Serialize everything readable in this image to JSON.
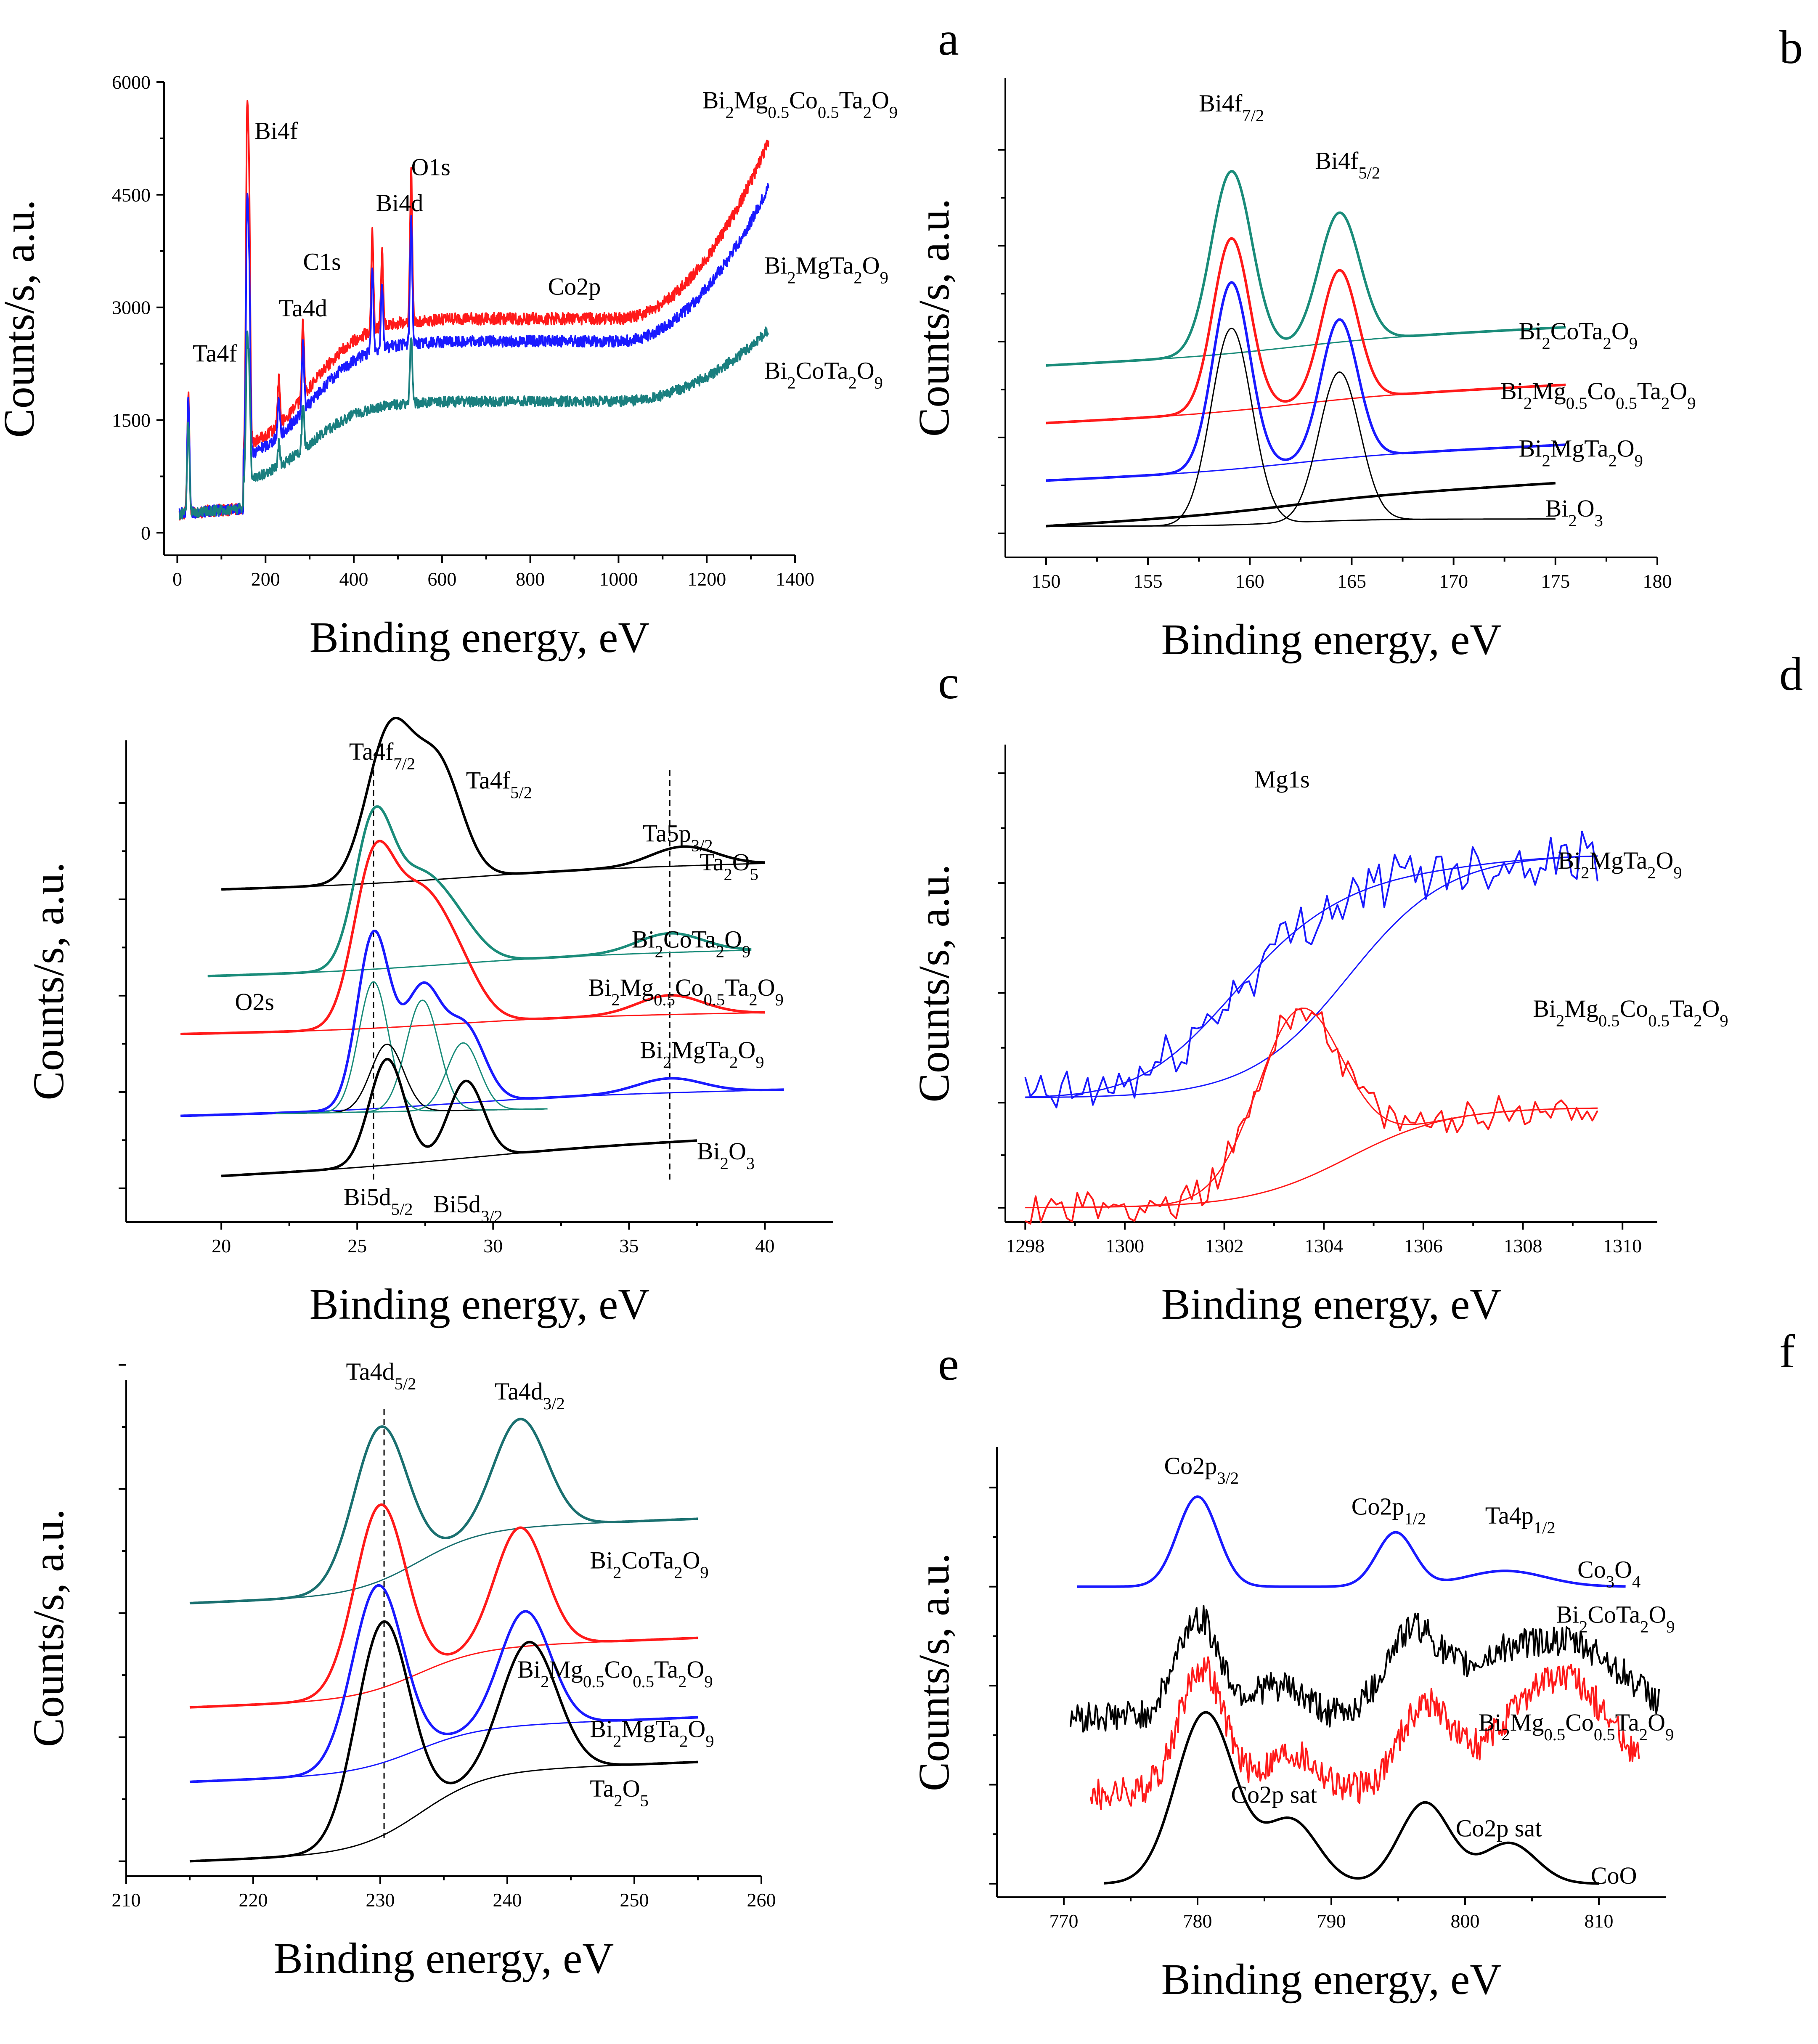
{
  "chart_data": [
    {
      "id": "a",
      "type": "line",
      "panel_letter": "a",
      "xlabel": "Binding energy, eV",
      "ylabel": "Counts/s, a.u.",
      "xlim": [
        -30,
        1400
      ],
      "ylim": [
        -300,
        6000
      ],
      "xticks": [
        0,
        200,
        400,
        600,
        800,
        1000,
        1200,
        1400
      ],
      "yticks": [
        0,
        1500,
        3000,
        4500,
        6000
      ],
      "ytick_labels": [
        "0",
        "1500",
        "3000",
        "4500",
        "6000"
      ],
      "annotations": [
        {
          "text": "Ta4f",
          "x": 35,
          "y": 2280
        },
        {
          "text": "Bi4f",
          "x": 175,
          "y": 5240
        },
        {
          "text": "C1s",
          "x": 285,
          "y": 3500
        },
        {
          "text": "Ta4d",
          "x": 230,
          "y": 2880
        },
        {
          "text": "Bi4d",
          "x": 450,
          "y": 4280
        },
        {
          "text": "O1s",
          "x": 530,
          "y": 4760
        },
        {
          "text": "Co2p",
          "x": 840,
          "y": 3170
        }
      ],
      "series": [
        {
          "name": "Bi₂Mg₀.₅Co₀.₅Ta₂O₉",
          "color": "#ff1a1a",
          "base": 2850,
          "end": 5200,
          "peaks": [
            [
              25,
              1600
            ],
            [
              158,
              4100
            ],
            [
              163,
              3100
            ],
            [
              230,
              600
            ],
            [
              285,
              1000
            ],
            [
              442,
              1300
            ],
            [
              464,
              1000
            ],
            [
              530,
              2000
            ]
          ],
          "noise": 160
        },
        {
          "name": "Bi₂MgTa₂O₉",
          "color": "#1a1aff",
          "base": 2550,
          "end": 4600,
          "peaks": [
            [
              25,
              1500
            ],
            [
              158,
              3000
            ],
            [
              163,
              2300
            ],
            [
              230,
              500
            ],
            [
              285,
              900
            ],
            [
              442,
              1100
            ],
            [
              464,
              900
            ],
            [
              530,
              1700
            ]
          ],
          "noise": 150
        },
        {
          "name": "Bi₂CoTa₂O₉",
          "color": "#1a7f7f",
          "base": 1750,
          "end": 2700,
          "peaks": [
            [
              25,
              1200
            ],
            [
              158,
              1700
            ],
            [
              163,
              1300
            ],
            [
              230,
              300
            ],
            [
              285,
              600
            ],
            [
              530,
              900
            ]
          ],
          "noise": 140
        }
      ],
      "series_labels": [
        {
          "text": "Bi₂Mg₀.₅Co₀.₅Ta₂O₉",
          "x": 1190,
          "y": 5650
        },
        {
          "text": "Bi₂MgTa₂O₉",
          "x": 1330,
          "y": 3450
        },
        {
          "text": "Bi₂CoTa₂O₉",
          "x": 1330,
          "y": 2050
        }
      ]
    },
    {
      "id": "b",
      "type": "line",
      "panel_letter": "b",
      "xlabel": "Binding energy, eV",
      "ylabel": "Counts/s, a.u.",
      "xlim": [
        148,
        180
      ],
      "ylim": [
        0,
        10
      ],
      "xticks": [
        150,
        155,
        160,
        165,
        170,
        175,
        180
      ],
      "yticks": [
        0.5,
        2.5,
        4.5,
        6.5,
        8.5
      ],
      "ytick_labels": [
        "",
        "",
        "",
        "",
        ""
      ],
      "annotations": [
        {
          "text": "Bi4f7/2",
          "x": 157.5,
          "y": 9.3
        },
        {
          "text": "Bi4f5/2",
          "x": 163.2,
          "y": 8.1
        }
      ],
      "series": [
        {
          "name": "Bi₂CoTa₂O₉",
          "color": "#1a8c7a",
          "offset": 4.0,
          "x0": 150,
          "x1": 175.5,
          "tail": 0.55,
          "peaks": [
            [
              159.1,
              3.8,
              1.0
            ],
            [
              164.4,
              2.7,
              1.0
            ]
          ]
        },
        {
          "name": "Bi₂Mg₀.₅Co₀.₅Ta₂O₉",
          "color": "#ff1a1a",
          "offset": 2.8,
          "x0": 150,
          "x1": 175.5,
          "tail": 0.55,
          "peaks": [
            [
              159.1,
              3.6,
              0.9
            ],
            [
              164.4,
              2.7,
              0.9
            ]
          ]
        },
        {
          "name": "Bi₂MgTa₂O₉",
          "color": "#1a1aff",
          "offset": 1.6,
          "x0": 150,
          "x1": 175.5,
          "tail": 0.5,
          "peaks": [
            [
              159.1,
              3.9,
              0.9
            ],
            [
              164.4,
              2.9,
              0.9
            ]
          ]
        },
        {
          "name": "Bi₂O₃",
          "color": "#000000",
          "offset": 0.65,
          "x0": 150,
          "x1": 175,
          "tail": 0.65,
          "peaks": [],
          "components": [
            [
              159.1,
              4.1,
              1.0
            ],
            [
              164.4,
              3.1,
              1.0
            ]
          ]
        }
      ],
      "series_labels": [
        {
          "text": "Bi₂CoTa₂O₉",
          "x": 173.2,
          "y": 4.55
        },
        {
          "text": "Bi₂Mg₀.₅Co₀.₅Ta₂O₉",
          "x": 172.3,
          "y": 3.3
        },
        {
          "text": "Bi₂MgTa₂O₉",
          "x": 173.2,
          "y": 2.1
        },
        {
          "text": "Bi₂O₃",
          "x": 174.5,
          "y": 0.85
        }
      ]
    },
    {
      "id": "c",
      "type": "line",
      "panel_letter": "c",
      "xlabel": "Binding energy, eV",
      "ylabel": "Counts/s, a.u.",
      "xlim": [
        16.5,
        42.5
      ],
      "ylim": [
        0,
        10
      ],
      "xticks": [
        20,
        25,
        30,
        35,
        40
      ],
      "yticks": [
        0.7,
        2.7,
        4.7,
        6.7,
        8.7
      ],
      "ytick_labels": [
        "",
        "",
        "",
        "",
        ""
      ],
      "annotations": [
        {
          "text": "Ta4f7/2",
          "x": 24.7,
          "y": 9.6
        },
        {
          "text": "Ta4f5/2",
          "x": 29.0,
          "y": 9.0
        },
        {
          "text": "Ta5p3/2",
          "x": 35.5,
          "y": 7.9
        },
        {
          "text": "O2s",
          "x": 20.5,
          "y": 4.4
        },
        {
          "text": "Bi5d5/2",
          "x": 24.5,
          "y": 0.35
        },
        {
          "text": "Bi5d3/2",
          "x": 27.8,
          "y": 0.2
        }
      ],
      "series": [
        {
          "name": "Ta₂O₅",
          "color": "#000000",
          "offset": 6.9,
          "x0": 20,
          "x1": 40,
          "tail": 0.3,
          "peaks": [
            [
              26.2,
              3.1,
              0.85
            ],
            [
              28.0,
              2.3,
              0.85
            ],
            [
              37.0,
              0.4,
              1.2
            ]
          ]
        },
        {
          "name": "Bi₂CoTa₂O₉",
          "color": "#1a8c7a",
          "offset": 5.1,
          "x0": 19.5,
          "x1": 39.5,
          "tail": 0.3,
          "peaks": [
            [
              25.6,
              3.0,
              0.7
            ],
            [
              27.2,
              1.6,
              0.9
            ],
            [
              28.6,
              0.8,
              0.9
            ],
            [
              36.5,
              0.4,
              1.2
            ]
          ]
        },
        {
          "name": "Bi₂Mg₀.₅Co₀.₅Ta₂O₉",
          "color": "#ff1a1a",
          "offset": 3.9,
          "x0": 18.5,
          "x1": 40,
          "tail": 0.2,
          "peaks": [
            [
              25.6,
              3.3,
              0.75
            ],
            [
              27.2,
              2.3,
              0.9
            ],
            [
              28.6,
              1.2,
              0.9
            ],
            [
              36.5,
              0.4,
              1.2
            ]
          ]
        },
        {
          "name": "Bi₂MgTa₂O₉",
          "color": "#1a1aff",
          "offset": 2.2,
          "x0": 18.5,
          "x1": 40.7,
          "tail": 0.3,
          "peaks": [
            [
              25.6,
              3.6,
              0.6
            ],
            [
              27.4,
              2.4,
              0.7
            ],
            [
              29.0,
              1.5,
              0.7
            ],
            [
              36.5,
              0.3,
              1.2
            ]
          ]
        },
        {
          "name": "Bi₂O₃",
          "color": "#000000",
          "offset": 0.95,
          "x0": 20,
          "x1": 37.5,
          "tail": 0.5,
          "peaks": [
            [
              26.1,
              2.2,
              0.65
            ],
            [
              29.0,
              1.6,
              0.65
            ]
          ]
        }
      ],
      "series_labels": [
        {
          "text": "Ta₂O₅",
          "x": 37.6,
          "y": 7.3
        },
        {
          "text": "Bi₂CoTa₂O₉",
          "x": 35.1,
          "y": 5.7
        },
        {
          "text": "Bi₂Mg₀.₅Co₀.₅Ta₂O₉",
          "x": 33.5,
          "y": 4.7
        },
        {
          "text": "Bi₂MgTa₂O₉",
          "x": 35.4,
          "y": 3.4
        },
        {
          "text": "Bi₂O₃",
          "x": 37.5,
          "y": 1.3
        }
      ],
      "dashed_lines_x": [
        25.6,
        36.5
      ]
    },
    {
      "id": "d",
      "type": "line",
      "panel_letter": "d",
      "xlabel": "Binding energy, eV",
      "ylabel": "Counts/s, a.u.",
      "xlim": [
        1297.6,
        1310.7
      ],
      "ylim": [
        0,
        10
      ],
      "xticks": [
        1298,
        1300,
        1302,
        1304,
        1306,
        1308,
        1310
      ],
      "yticks": [
        0.3,
        2.5,
        4.8,
        7.1,
        9.4
      ],
      "ytick_labels": [
        "",
        "",
        "",
        "",
        ""
      ],
      "annotations": [
        {
          "text": "Mg1s",
          "x": 1302.6,
          "y": 9.1
        }
      ],
      "series": [
        {
          "name": "Bi₂MgTa₂O₉",
          "color": "#1a1aff",
          "x0": 1298,
          "x1": 1309.5,
          "base_start": 2.6,
          "base_end": 7.7,
          "fit_peak": [
            1303.3,
            2.2,
            1.6
          ],
          "noise": 0.55
        },
        {
          "name": "Bi₂Mg₀.₅Co₀.₅Ta₂O₉",
          "color": "#ff1a1a",
          "x0": 1298,
          "x1": 1309.5,
          "base_start": 0.3,
          "base_end": 2.4,
          "fit_peak": [
            1303.5,
            3.6,
            0.85
          ],
          "noise": 0.35
        }
      ],
      "series_labels": [
        {
          "text": "Bi₂MgTa₂O₉",
          "x": 1308.7,
          "y": 7.4
        },
        {
          "text": "Bi₂Mg₀.₅Co₀.₅Ta₂O₉",
          "x": 1308.2,
          "y": 4.3
        }
      ]
    },
    {
      "id": "e",
      "type": "line",
      "panel_letter": "e",
      "xlabel": "Binding energy, eV",
      "ylabel": "Counts/s, a.u.",
      "xlim": [
        210,
        260
      ],
      "ylim": [
        0,
        10
      ],
      "xticks": [
        210,
        220,
        230,
        240,
        250,
        260
      ],
      "yticks": [
        0.3,
        2.8,
        5.3,
        7.8,
        10.3
      ],
      "ytick_labels": [
        "",
        "",
        "",
        "",
        ""
      ],
      "annotations": [
        {
          "text": "Ta4d5/2",
          "x": 227.3,
          "y": 10.0
        },
        {
          "text": "Ta4d3/2",
          "x": 239.0,
          "y": 9.6
        }
      ],
      "series": [
        {
          "name": "Bi₂CoTa₂O₉",
          "color": "#1a7070",
          "offset": 5.5,
          "x0": 215,
          "x1": 255,
          "step": 1.3,
          "peaks": [
            [
              230.0,
              3.1,
              2.1
            ],
            [
              241.0,
              2.2,
              2.1
            ]
          ]
        },
        {
          "name": "Bi₂Mg₀.₅Co₀.₅Ta₂O₉",
          "color": "#ff1a1a",
          "offset": 3.4,
          "x0": 215,
          "x1": 255,
          "step": 1.0,
          "peaks": [
            [
              230.0,
              3.7,
              2.0
            ],
            [
              241.0,
              2.4,
              2.0
            ]
          ]
        },
        {
          "name": "Bi₂MgTa₂O₉",
          "color": "#1a1aff",
          "offset": 1.9,
          "x0": 215,
          "x1": 255,
          "step": 0.9,
          "peaks": [
            [
              229.8,
              3.6,
              2.0
            ],
            [
              241.4,
              2.3,
              2.0
            ]
          ]
        },
        {
          "name": "Ta₂O₅",
          "color": "#000000",
          "offset": 0.3,
          "x0": 215,
          "x1": 255,
          "step": 1.6,
          "peaks": [
            [
              230.2,
              4.3,
              2.1
            ],
            [
              241.7,
              2.6,
              2.2
            ]
          ]
        }
      ],
      "series_labels": [
        {
          "text": "Bi₂CoTa₂O₉",
          "x": 246.5,
          "y": 6.2
        },
        {
          "text": "Bi₂Mg₀.₅Co₀.₅Ta₂O₉",
          "x": 240.8,
          "y": 4.0
        },
        {
          "text": "Bi₂MgTa₂O₉",
          "x": 246.5,
          "y": 2.8
        },
        {
          "text": "Ta₂O₅",
          "x": 246.5,
          "y": 1.6
        }
      ],
      "dashed_lines_x": [
        230.3
      ]
    },
    {
      "id": "f",
      "type": "line",
      "panel_letter": "f",
      "xlabel": "Binding energy, eV",
      "ylabel": "Counts/s, a.u.",
      "xlim": [
        765,
        815
      ],
      "ylim": [
        0,
        10
      ],
      "xticks": [
        770,
        780,
        790,
        800,
        810
      ],
      "yticks": [
        0.3,
        2.5,
        4.7,
        6.9,
        9.1
      ],
      "ytick_labels": [
        "",
        "",
        "",
        "",
        ""
      ],
      "annotations": [
        {
          "text": "Co2p3/2",
          "x": 777.5,
          "y": 9.4
        },
        {
          "text": "Co2p1/2",
          "x": 791.5,
          "y": 8.5
        },
        {
          "text": "Ta4p1/2",
          "x": 801.5,
          "y": 8.3
        },
        {
          "text": "Co2p sat",
          "x": 782.5,
          "y": 2.1
        },
        {
          "text": "Co2p sat",
          "x": 799.3,
          "y": 1.35
        }
      ],
      "series": [
        {
          "name": "Co₃O₄",
          "color": "#1a1aff",
          "x0": 771,
          "x1": 812,
          "base": 6.9,
          "noise": 0.0,
          "peaks": [
            [
              780.0,
              2.0,
              1.5
            ],
            [
              794.8,
              1.2,
              1.4
            ],
            [
              803,
              0.35,
              3.0
            ]
          ]
        },
        {
          "name": "Bi₂CoTa₂O₉",
          "color": "#000000",
          "x0": 770.5,
          "x1": 814.5,
          "base": 4.0,
          "noise": 0.35,
          "peaks": [
            [
              780.0,
              2.2,
              1.6
            ],
            [
              786,
              0.7,
              2.0
            ],
            [
              796,
              1.8,
              2.0
            ],
            [
              804,
              1.5,
              4.0
            ],
            [
              810,
              0.9,
              3
            ]
          ]
        },
        {
          "name": "Bi₂Mg₀.₅Co₀.₅Ta₂O₉",
          "color": "#ff1a1a",
          "x0": 772,
          "x1": 813,
          "base": 2.3,
          "noise": 0.35,
          "peaks": [
            [
              780.3,
              2.8,
              1.7
            ],
            [
              787,
              0.9,
              2.0
            ],
            [
              797,
              1.9,
              2.0
            ],
            [
              807,
              2.6,
              4.0
            ]
          ],
          "thick": true
        },
        {
          "name": "CoO",
          "color": "#000000",
          "x0": 773,
          "x1": 810,
          "base": 0.3,
          "noise": 0.0,
          "peaks": [
            [
              780.6,
              3.8,
              2.2
            ],
            [
              787,
              1.4,
              2.0
            ],
            [
              797,
              1.8,
              1.9
            ],
            [
              803.3,
              0.9,
              2.0
            ]
          ]
        }
      ],
      "series_labels": [
        {
          "text": "Co₃O₄",
          "x": 808.4,
          "y": 7.1
        },
        {
          "text": "Bi₂CoTa₂O₉",
          "x": 806.8,
          "y": 6.1
        },
        {
          "text": "Bi₂Mg₀.₅Co₀.₅Ta₂O₉",
          "x": 801.0,
          "y": 3.7
        },
        {
          "text": "CoO",
          "x": 809.4,
          "y": 0.3
        }
      ]
    }
  ]
}
